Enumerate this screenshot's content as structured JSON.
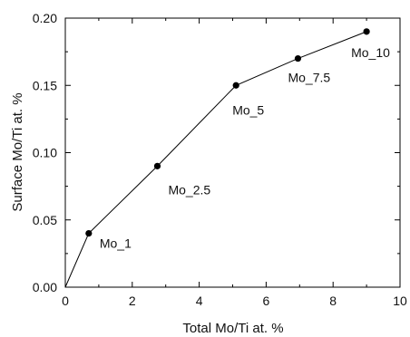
{
  "chart_data": {
    "type": "line",
    "title": "",
    "xlabel": "Total Mo/Ti at. %",
    "ylabel": "Surface Mo/Ti at. %",
    "xlim": [
      0,
      10
    ],
    "ylim": [
      0,
      0.2
    ],
    "x_ticks": [
      "0",
      "2",
      "4",
      "6",
      "8",
      "10"
    ],
    "y_ticks": [
      "0.00",
      "0.05",
      "0.10",
      "0.15",
      "0.20"
    ],
    "grid": false,
    "series": [
      {
        "x": [
          0,
          0.7,
          2.75,
          5.1,
          6.95,
          9.0
        ],
        "y": [
          0,
          0.04,
          0.09,
          0.15,
          0.17,
          0.19
        ],
        "point_labels": [
          "",
          "Mo_1",
          "Mo_2.5",
          "Mo_5",
          "Mo_7.5",
          "Mo_10"
        ],
        "marker_shown": [
          false,
          true,
          true,
          true,
          true,
          true
        ]
      }
    ],
    "colors": {
      "line": "#000000",
      "marker": "#000000"
    }
  }
}
